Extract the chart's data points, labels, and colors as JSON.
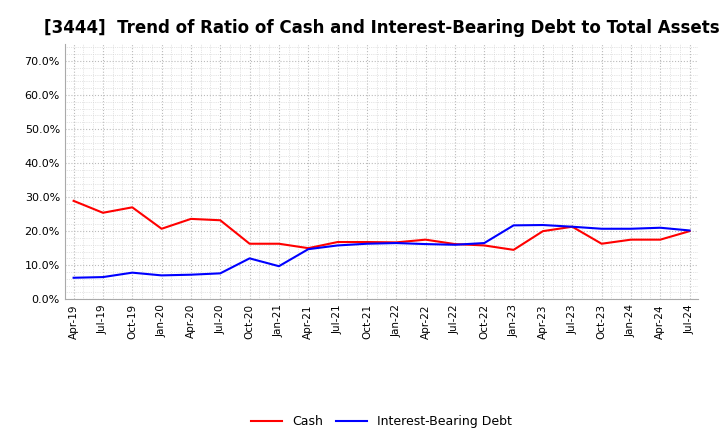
{
  "title": "[3444]  Trend of Ratio of Cash and Interest-Bearing Debt to Total Assets",
  "x_labels": [
    "Apr-19",
    "Jul-19",
    "Oct-19",
    "Jan-20",
    "Apr-20",
    "Jul-20",
    "Oct-20",
    "Jan-21",
    "Apr-21",
    "Jul-21",
    "Oct-21",
    "Jan-22",
    "Apr-22",
    "Jul-22",
    "Oct-22",
    "Jan-23",
    "Apr-23",
    "Jul-23",
    "Oct-23",
    "Jan-24",
    "Apr-24",
    "Jul-24"
  ],
  "cash": [
    0.289,
    0.254,
    0.27,
    0.207,
    0.236,
    0.232,
    0.163,
    0.163,
    0.15,
    0.168,
    0.168,
    0.167,
    0.175,
    0.162,
    0.158,
    0.145,
    0.2,
    0.213,
    0.163,
    0.175,
    0.175,
    0.2
  ],
  "debt": [
    0.063,
    0.065,
    0.078,
    0.07,
    0.072,
    0.076,
    0.12,
    0.097,
    0.147,
    0.158,
    0.163,
    0.165,
    0.162,
    0.16,
    0.165,
    0.217,
    0.218,
    0.213,
    0.207,
    0.207,
    0.21,
    0.202
  ],
  "cash_color": "#ff0000",
  "debt_color": "#0000ff",
  "ylim": [
    0.0,
    0.75
  ],
  "yticks": [
    0.0,
    0.1,
    0.2,
    0.3,
    0.4,
    0.5,
    0.6,
    0.7
  ],
  "background_color": "#ffffff",
  "plot_bg_color": "#ffffff",
  "grid_color": "#aaaaaa",
  "title_fontsize": 12,
  "legend_cash": "Cash",
  "legend_debt": "Interest-Bearing Debt"
}
